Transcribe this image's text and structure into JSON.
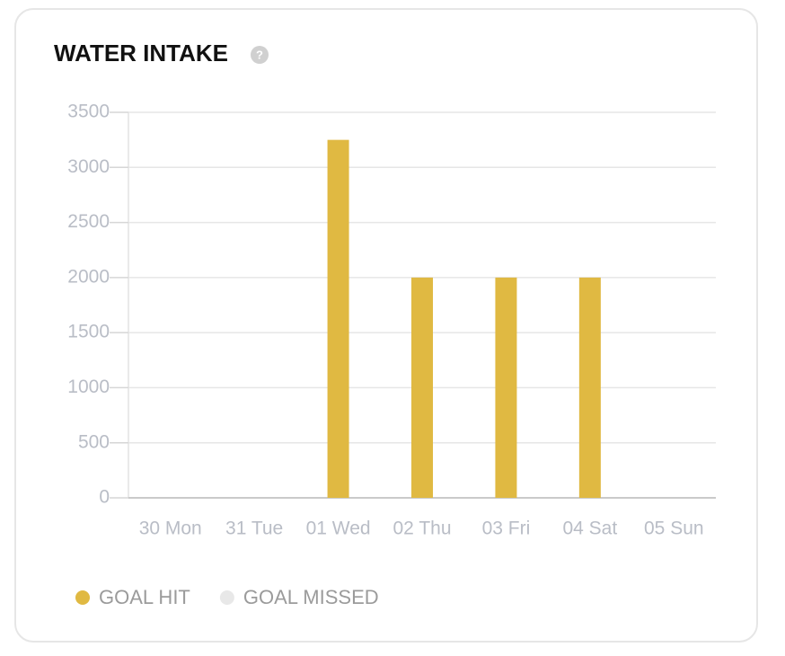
{
  "chart_data": {
    "type": "bar",
    "title": "WATER INTAKE",
    "help_icon": "?",
    "categories": [
      "30 Mon",
      "31 Tue",
      "01 Wed",
      "02 Thu",
      "03 Fri",
      "04 Sat",
      "05 Sun"
    ],
    "series": [
      {
        "name": "GOAL HIT",
        "color": "#e0b942",
        "values": [
          null,
          null,
          3250,
          2000,
          2000,
          2000,
          null
        ]
      },
      {
        "name": "GOAL MISSED",
        "color": "#e8e8e8",
        "values": [
          0,
          0,
          null,
          null,
          null,
          null,
          0
        ]
      }
    ],
    "ylim": [
      0,
      3500
    ],
    "yticks": [
      0,
      500,
      1000,
      1500,
      2000,
      2500,
      3000,
      3500
    ],
    "grid": true
  }
}
